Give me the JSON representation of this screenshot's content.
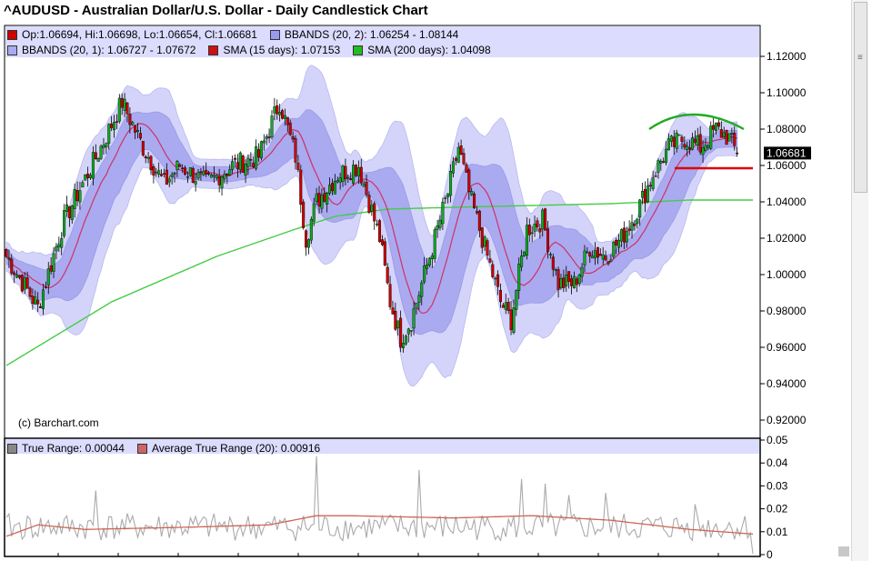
{
  "title": "^AUDUSD - Australian Dollar/U.S. Dollar - Daily Candlestick Chart",
  "legend_top": [
    {
      "color": "#cc0000",
      "text": "Op:1.06694, Hi:1.06698, Lo:1.06654, Cl:1.06681"
    },
    {
      "color": "#9999ee",
      "text": "BBANDS (20, 2): 1.06254 - 1.08144"
    }
  ],
  "legend_second": [
    {
      "color": "#aaaaf0",
      "text": "BBANDS (20, 1): 1.06727 - 1.07672"
    },
    {
      "color": "#cc1111",
      "text": "SMA (15 days): 1.07153"
    },
    {
      "color": "#22bb22",
      "text": "SMA (200 days): 1.04098"
    }
  ],
  "legend_lower": [
    {
      "color": "#888888",
      "text": "True Range: 0.00044"
    },
    {
      "color": "#cc6666",
      "text": "Average True Range (20): 0.00916"
    }
  ],
  "credit": "(c) Barchart.com",
  "last_price_label": "1.06681",
  "colors": {
    "up": "#11aa22",
    "down": "#cc0000",
    "outer_band": "#d4d4fa",
    "inner_band": "#aaaaf0",
    "sma15": "#cc3366",
    "sma200": "#44cc44",
    "atr": "#cc6655",
    "tr": "#aaaaaa",
    "annotation_green": "#22aa22",
    "annotation_red": "#dd0000"
  },
  "chart_data": [
    {
      "type": "candlestick",
      "title": "^AUDUSD - Australian Dollar/U.S. Dollar - Daily Candlestick Chart",
      "ylim": [
        0.92,
        1.12
      ],
      "y_ticks": [
        "1.12000",
        "1.10000",
        "1.08000",
        "1.06000",
        "1.04000",
        "1.02000",
        "1.00000",
        "0.98000",
        "0.96000",
        "0.94000",
        "0.92000"
      ],
      "close_anchors": [
        [
          0,
          1.01
        ],
        [
          12,
          0.982
        ],
        [
          22,
          1.03
        ],
        [
          36,
          1.07
        ],
        [
          44,
          1.095
        ],
        [
          52,
          1.07
        ],
        [
          60,
          1.05
        ],
        [
          66,
          1.06
        ],
        [
          76,
          1.05
        ],
        [
          86,
          1.06
        ],
        [
          96,
          1.065
        ],
        [
          104,
          1.095
        ],
        [
          110,
          1.065
        ],
        [
          114,
          1.02
        ],
        [
          118,
          1.04
        ],
        [
          126,
          1.055
        ],
        [
          134,
          1.06
        ],
        [
          142,
          1.02
        ],
        [
          146,
          0.985
        ],
        [
          150,
          0.965
        ],
        [
          154,
          0.975
        ],
        [
          160,
          1.005
        ],
        [
          168,
          1.045
        ],
        [
          172,
          1.07
        ],
        [
          176,
          1.045
        ],
        [
          182,
          1.015
        ],
        [
          188,
          0.985
        ],
        [
          192,
          0.975
        ],
        [
          198,
          1.025
        ],
        [
          204,
          1.03
        ],
        [
          210,
          0.995
        ],
        [
          216,
          0.995
        ],
        [
          222,
          1.015
        ],
        [
          228,
          1.01
        ],
        [
          234,
          1.02
        ],
        [
          240,
          1.035
        ],
        [
          246,
          1.055
        ],
        [
          252,
          1.07
        ],
        [
          258,
          1.075
        ],
        [
          264,
          1.07
        ],
        [
          270,
          1.08
        ],
        [
          275,
          1.075
        ],
        [
          278,
          1.06681
        ]
      ],
      "sma200_anchors": [
        [
          0,
          0.95
        ],
        [
          40,
          0.985
        ],
        [
          80,
          1.01
        ],
        [
          110,
          1.025
        ],
        [
          125,
          1.032
        ],
        [
          145,
          1.036
        ],
        [
          170,
          1.037
        ],
        [
          200,
          1.038
        ],
        [
          230,
          1.039
        ],
        [
          260,
          1.041
        ],
        [
          284,
          1.041
        ]
      ],
      "current": {
        "open": 1.06694,
        "high": 1.06698,
        "low": 1.06654,
        "close": 1.06681
      },
      "series": [
        {
          "name": "BBANDS (20, 2)",
          "last": [
            1.06254,
            1.08144
          ]
        },
        {
          "name": "BBANDS (20, 1)",
          "last": [
            1.06727,
            1.07672
          ]
        },
        {
          "name": "SMA (15 days)",
          "last": 1.07153
        },
        {
          "name": "SMA (200 days)",
          "last": 1.04098
        }
      ]
    },
    {
      "type": "line",
      "ylim": [
        0,
        0.05
      ],
      "y_ticks": [
        "0.05",
        "0.04",
        "0.03",
        "0.02",
        "0.01",
        "0"
      ],
      "series": [
        {
          "name": "True Range",
          "last": 0.00044,
          "spikes": [
            [
              34,
              0.028
            ],
            [
              118,
              0.043
            ],
            [
              157,
              0.037
            ],
            [
              196,
              0.033
            ],
            [
              205,
              0.031
            ],
            [
              214,
              0.026
            ],
            [
              228,
              0.027
            ],
            [
              262,
              0.022
            ]
          ]
        },
        {
          "name": "Average True Range (20)",
          "last": 0.00916,
          "anchors": [
            [
              0,
              0.008
            ],
            [
              12,
              0.013
            ],
            [
              30,
              0.011
            ],
            [
              70,
              0.012
            ],
            [
              100,
              0.013
            ],
            [
              118,
              0.017
            ],
            [
              130,
              0.017
            ],
            [
              170,
              0.016
            ],
            [
              200,
              0.017
            ],
            [
              230,
              0.015
            ],
            [
              260,
              0.011
            ],
            [
              284,
              0.009
            ]
          ]
        }
      ]
    }
  ]
}
